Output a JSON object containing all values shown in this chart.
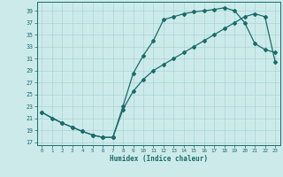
{
  "line1_x": [
    0,
    1,
    2,
    3,
    4,
    5,
    6,
    7,
    8,
    9,
    10,
    11,
    12,
    13,
    14,
    15,
    16,
    17,
    18,
    19,
    20,
    21,
    22,
    23
  ],
  "line1_y": [
    22,
    21,
    20.2,
    19.5,
    18.8,
    18.2,
    17.8,
    17.8,
    23,
    28.5,
    31.5,
    34,
    37.5,
    38,
    38.5,
    38.8,
    39,
    39.2,
    39.5,
    39,
    37,
    33.5,
    32.5,
    32
  ],
  "line2_x": [
    0,
    2,
    3,
    4,
    5,
    6,
    7,
    8,
    9,
    10,
    11,
    12,
    13,
    14,
    15,
    16,
    17,
    18,
    19,
    20,
    21,
    22,
    23
  ],
  "line2_y": [
    22,
    20.2,
    19.5,
    18.8,
    18.2,
    17.8,
    17.8,
    22.5,
    25.5,
    27.5,
    29,
    30,
    31,
    32,
    33,
    34,
    35,
    36,
    37,
    38,
    38.5,
    38,
    30.5
  ],
  "line_color": "#1a6b6b",
  "bg_color": "#cdeaea",
  "grid_color": "#a8d5d5",
  "xlabel": "Humidex (Indice chaleur)",
  "ylabel_ticks": [
    17,
    19,
    21,
    23,
    25,
    27,
    29,
    31,
    33,
    35,
    37,
    39
  ],
  "xlim": [
    -0.5,
    23.5
  ],
  "ylim": [
    16.5,
    40.5
  ],
  "xticks": [
    0,
    1,
    2,
    3,
    4,
    5,
    6,
    7,
    8,
    9,
    10,
    11,
    12,
    13,
    14,
    15,
    16,
    17,
    18,
    19,
    20,
    21,
    22,
    23
  ],
  "marker": "D",
  "markersize": 2.0,
  "linewidth": 0.9
}
